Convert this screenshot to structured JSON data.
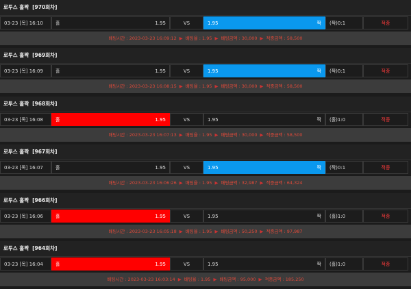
{
  "labels": {
    "home": "홀",
    "vs": "VS",
    "away": "짝",
    "bet_time": "배팅시간 :",
    "rate": "배팅율 :",
    "amount": "배팅금액 :",
    "win": "적중금액 :"
  },
  "entries": [
    {
      "game": "로투스 홀짝",
      "round": "[970회차]",
      "date": "03-23 [목] 16:10",
      "home_odds": "1.95",
      "away_odds": "1.95",
      "highlight": "right",
      "result": "(짝)0:1",
      "status": "적중",
      "bet_time": "2023-03-23 16:09:12",
      "rate": "1.95",
      "amount": "30,000",
      "win": "58,500"
    },
    {
      "game": "로투스 홀짝",
      "round": "[969회차]",
      "date": "03-23 [목] 16:09",
      "home_odds": "1.95",
      "away_odds": "1.95",
      "highlight": "right",
      "result": "(짝)0:1",
      "status": "적중",
      "bet_time": "2023-03-23 16:08:15",
      "rate": "1.95",
      "amount": "30,000",
      "win": "58,500"
    },
    {
      "game": "로투스 홀짝",
      "round": "[968회차]",
      "date": "03-23 [목] 16:08",
      "home_odds": "1.95",
      "away_odds": "1.95",
      "highlight": "left",
      "result": "(홀)1:0",
      "status": "적중",
      "bet_time": "2023-03-23 16:07:13",
      "rate": "1.95",
      "amount": "30,000",
      "win": "58,500"
    },
    {
      "game": "로투스 홀짝",
      "round": "[967회차]",
      "date": "03-23 [목] 16:07",
      "home_odds": "1.95",
      "away_odds": "1.95",
      "highlight": "right",
      "result": "(짝)0:1",
      "status": "적중",
      "bet_time": "2023-03-23 16:06:26",
      "rate": "1.95",
      "amount": "32,987",
      "win": "64,324"
    },
    {
      "game": "로투스 홀짝",
      "round": "[966회차]",
      "date": "03-23 [목] 16:06",
      "home_odds": "1.95",
      "away_odds": "1.95",
      "highlight": "left",
      "result": "(홀)1:0",
      "status": "적중",
      "bet_time": "2023-03-23 16:05:18",
      "rate": "1.95",
      "amount": "50,250",
      "win": "97,987"
    },
    {
      "game": "로투스 홀짝",
      "round": "[964회차]",
      "date": "03-23 [목] 16:04",
      "home_odds": "1.95",
      "away_odds": "1.95",
      "highlight": "left",
      "result": "(홀)1:0",
      "status": "적중",
      "bet_time": "2023-03-23 16:03:14",
      "rate": "1.95",
      "amount": "95,000",
      "win": "185,250"
    }
  ]
}
